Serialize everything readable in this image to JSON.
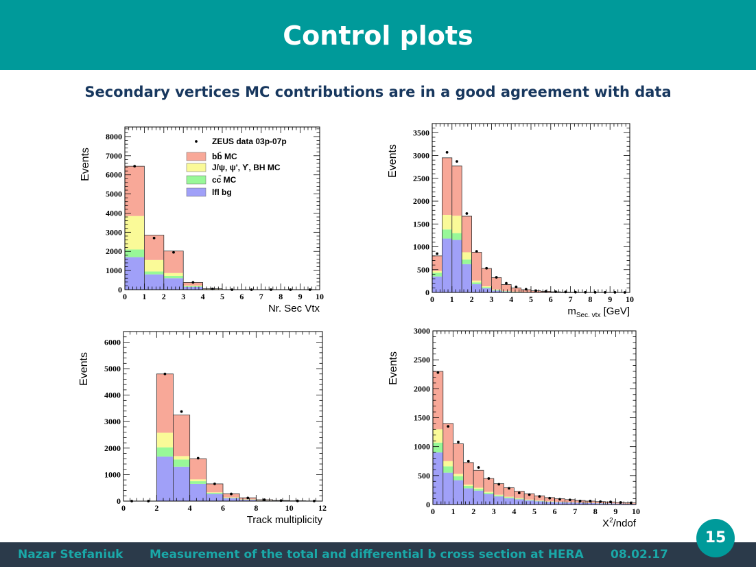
{
  "header": {
    "title": "Control plots"
  },
  "subtitle": "Secondary vertices MC contributions are in a good agreement with data",
  "footer": {
    "author": "Nazar  Stefaniuk",
    "talk_title": "Measurement of the total and differential b cross section at HERA",
    "date": "08.02.17"
  },
  "page_number": "15",
  "colors": {
    "header_bg": "#009a9a",
    "footer_bg": "#2b3a4a",
    "bb": "#f8a898",
    "jpsi": "#fafa98",
    "cc": "#98f898",
    "lfl": "#a0a0f8",
    "data": "#000000"
  },
  "legend": {
    "entries": [
      "ZEUS data 03p-07p",
      "bb̄ MC",
      "J/ψ, ψ', ϒ, BH MC",
      "cc̄ MC",
      "lfl bg"
    ]
  },
  "chart_data": [
    {
      "type": "bar",
      "stacked": true,
      "ylabel": "Events",
      "xlabel": "Nr. Sec Vtx",
      "xlim": [
        0,
        10
      ],
      "ylim": [
        0,
        8500
      ],
      "xticks": [
        0,
        1,
        2,
        3,
        4,
        5,
        6,
        7,
        8,
        9,
        10
      ],
      "yticks": [
        0,
        1000,
        2000,
        3000,
        4000,
        5000,
        6000,
        7000,
        8000
      ],
      "bin_edges": [
        0,
        1,
        2,
        3,
        4,
        5
      ],
      "series": [
        {
          "name": "lfl bg",
          "values": [
            1700,
            800,
            600,
            150,
            20
          ]
        },
        {
          "name": "cc̄ MC",
          "values": [
            400,
            150,
            120,
            30,
            5
          ]
        },
        {
          "name": "J/ψ, ψ', ϒ, BH MC",
          "values": [
            1750,
            600,
            150,
            30,
            5
          ]
        },
        {
          "name": "bb̄ MC",
          "values": [
            2600,
            1300,
            1150,
            170,
            20
          ]
        }
      ],
      "data_points": {
        "name": "ZEUS data 03p-07p",
        "x": [
          0.5,
          1.5,
          2.5,
          3.5,
          4.5,
          5.5,
          6.5,
          7.5,
          8.5,
          9.5
        ],
        "y": [
          6450,
          2700,
          1950,
          380,
          40,
          0,
          0,
          0,
          0,
          0
        ]
      },
      "legend_position": "top-right"
    },
    {
      "type": "bar",
      "stacked": true,
      "ylabel": "Events",
      "xlabel": "m",
      "xlabel_sub": "Sec. vtx",
      "xlabel_unit": " [GeV]",
      "xlim": [
        0,
        10
      ],
      "ylim": [
        0,
        3700
      ],
      "xticks": [
        0,
        1,
        2,
        3,
        4,
        5,
        6,
        7,
        8,
        9,
        10
      ],
      "yticks": [
        0,
        500,
        1000,
        1500,
        2000,
        2500,
        3000,
        3500
      ],
      "bin_edges": [
        0,
        0.5,
        1,
        1.5,
        2,
        2.5,
        3,
        3.5,
        4,
        4.5,
        5,
        5.5,
        6,
        6.5,
        7,
        7.5,
        8,
        8.5,
        9,
        9.5,
        10
      ],
      "series": [
        {
          "name": "lfl bg",
          "values": [
            350,
            1180,
            1150,
            620,
            180,
            90,
            40,
            20,
            10,
            5,
            3,
            2,
            1,
            1,
            0,
            0,
            0,
            0,
            0,
            0
          ]
        },
        {
          "name": "cc̄ MC",
          "values": [
            80,
            200,
            150,
            100,
            40,
            25,
            15,
            8,
            5,
            3,
            2,
            1,
            1,
            0,
            0,
            0,
            0,
            0,
            0,
            0
          ]
        },
        {
          "name": "J/ψ, ψ', ϒ, BH MC",
          "values": [
            40,
            320,
            380,
            160,
            40,
            20,
            10,
            5,
            3,
            2,
            1,
            1,
            0,
            0,
            0,
            0,
            0,
            0,
            0,
            0
          ]
        },
        {
          "name": "bb̄ MC",
          "values": [
            330,
            1250,
            1090,
            790,
            620,
            390,
            260,
            140,
            80,
            50,
            30,
            20,
            12,
            8,
            5,
            3,
            2,
            1,
            1,
            0
          ]
        }
      ],
      "data_points": {
        "name": "ZEUS data 03p-07p",
        "x": [
          0.25,
          0.75,
          1.25,
          1.75,
          2.25,
          2.75,
          3.25,
          3.75,
          4.25,
          4.75,
          5.25,
          5.75,
          6.25,
          6.75,
          7.25,
          7.75,
          8.25,
          8.75,
          9.25,
          9.75
        ],
        "y": [
          850,
          3070,
          2870,
          1730,
          900,
          530,
          330,
          200,
          120,
          70,
          40,
          25,
          15,
          10,
          5,
          3,
          2,
          1,
          1,
          0
        ]
      }
    },
    {
      "type": "bar",
      "stacked": true,
      "ylabel": "Events",
      "xlabel": "Track multiplicity",
      "xlim": [
        0,
        12
      ],
      "ylim": [
        0,
        6400
      ],
      "xticks": [
        0,
        2,
        4,
        6,
        8,
        10,
        12
      ],
      "yticks": [
        0,
        1000,
        2000,
        3000,
        4000,
        5000,
        6000
      ],
      "bin_edges": [
        2,
        3,
        4,
        5,
        6,
        7,
        8,
        9,
        10,
        11,
        12
      ],
      "series": [
        {
          "name": "lfl bg",
          "values": [
            1680,
            1300,
            650,
            270,
            110,
            50,
            20,
            10,
            5,
            2
          ]
        },
        {
          "name": "cc̄ MC",
          "values": [
            350,
            270,
            100,
            40,
            20,
            10,
            5,
            2,
            1,
            0
          ]
        },
        {
          "name": "J/ψ, ψ', ϒ, BH MC",
          "values": [
            550,
            130,
            70,
            20,
            10,
            5,
            2,
            1,
            0,
            0
          ]
        },
        {
          "name": "bb̄ MC",
          "values": [
            2220,
            1550,
            780,
            320,
            140,
            60,
            25,
            10,
            5,
            2
          ]
        }
      ],
      "data_points": {
        "name": "ZEUS data 03p-07p",
        "x": [
          0.5,
          1.5,
          2.5,
          3.5,
          4.5,
          5.5,
          6.5,
          7.5,
          8.5,
          9.5,
          10.5,
          11.5
        ],
        "y": [
          0,
          0,
          4800,
          3380,
          1620,
          650,
          270,
          120,
          50,
          20,
          8,
          3
        ]
      }
    },
    {
      "type": "bar",
      "stacked": true,
      "ylabel": "Events",
      "xlabel": "X",
      "xlabel_sup": "2",
      "xlabel_unit": "/ndof",
      "xlim": [
        0,
        10
      ],
      "ylim": [
        0,
        3000
      ],
      "xticks": [
        0,
        1,
        2,
        3,
        4,
        5,
        6,
        7,
        8,
        9,
        10
      ],
      "yticks": [
        0,
        500,
        1000,
        1500,
        2000,
        2500,
        3000
      ],
      "bin_edges": [
        0,
        0.5,
        1,
        1.5,
        2,
        2.5,
        3,
        3.5,
        4,
        4.5,
        5,
        5.5,
        6,
        6.5,
        7,
        7.5,
        8,
        8.5,
        9,
        9.5,
        10
      ],
      "series": [
        {
          "name": "lfl bg",
          "values": [
            900,
            550,
            420,
            280,
            240,
            180,
            140,
            110,
            90,
            70,
            55,
            45,
            40,
            35,
            30,
            25,
            20,
            18,
            15,
            12
          ]
        },
        {
          "name": "cc̄ MC",
          "values": [
            170,
            110,
            70,
            40,
            30,
            25,
            18,
            15,
            12,
            10,
            8,
            6,
            5,
            4,
            3,
            3,
            2,
            2,
            1,
            1
          ]
        },
        {
          "name": "J/ψ, ψ', ϒ, BH MC",
          "values": [
            230,
            90,
            40,
            25,
            20,
            15,
            12,
            10,
            8,
            6,
            5,
            4,
            3,
            3,
            2,
            2,
            1,
            1,
            1,
            1
          ]
        },
        {
          "name": "bb̄ MC",
          "values": [
            1000,
            650,
            520,
            380,
            300,
            230,
            190,
            155,
            120,
            100,
            82,
            65,
            52,
            43,
            35,
            30,
            27,
            24,
            18,
            16
          ]
        }
      ],
      "data_points": {
        "name": "ZEUS data 03p-07p",
        "x": [
          0.25,
          0.75,
          1.25,
          1.75,
          2.25,
          2.75,
          3.25,
          3.75,
          4.25,
          4.75,
          5.25,
          5.75,
          6.25,
          6.75,
          7.25,
          7.75,
          8.25,
          8.75,
          9.25,
          9.75
        ],
        "y": [
          2280,
          1350,
          1080,
          750,
          640,
          450,
          350,
          280,
          200,
          170,
          140,
          110,
          90,
          80,
          60,
          60,
          50,
          45,
          35,
          30
        ]
      }
    }
  ]
}
